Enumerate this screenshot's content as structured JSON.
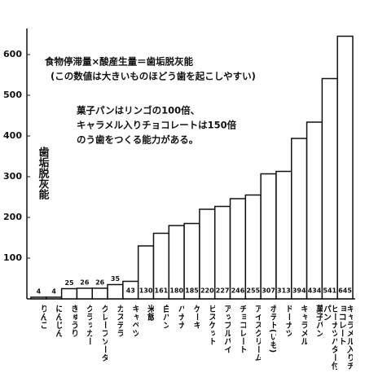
{
  "chart_data": {
    "type": "bar",
    "y_label": "歯垢脱灰能",
    "annotations": [
      "食物停滞量×酸産生量＝歯垢脱灰能",
      "(この数値は大きいものほどう歯を起こしやすい)",
      "菓子パンはリンゴの100倍、",
      "キャラメル入りチョコレートは150倍",
      "のう歯をつくる能力がある。"
    ],
    "categories": [
      "りんご",
      "にんじん",
      "きゅうり",
      "クラッカー",
      "グレープソーダ",
      "カステラ",
      "キャベツ",
      "米飯",
      "白パン",
      "バナナ",
      "ケーキ",
      "ビスケット",
      "アップルパイ",
      "チョコレート",
      "アイスクリーム",
      "ポテト(いも)",
      "ドーナツ",
      "キャラメル",
      "菓子パン",
      "ピーナツバター付パン",
      "キャラメル入りチョコレート"
    ],
    "values": [
      4,
      4,
      25,
      26,
      26,
      35,
      43,
      130,
      161,
      180,
      185,
      220,
      227,
      246,
      255,
      307,
      313,
      394,
      434,
      541,
      645
    ],
    "color": "#ffffff",
    "ylim": [
      0,
      700
    ],
    "yticks": [
      100,
      200,
      300,
      400,
      500,
      600
    ],
    "grid": false
  }
}
